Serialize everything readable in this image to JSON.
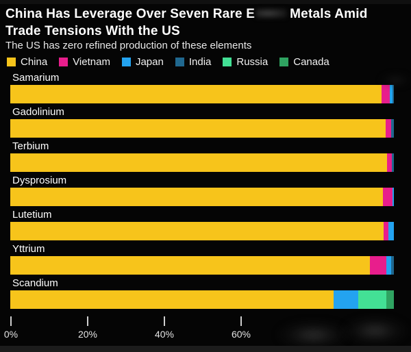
{
  "title": {
    "line1_before_redaction": "China Has Leverage Over Seven Rare E",
    "line1_redaction": "blurred-patch",
    "line1_after_redaction": "Metals Amid",
    "line2": "Trade Tensions With the US"
  },
  "subtitle": "The US has zero refined production of these elements",
  "colors": {
    "background": "#050505",
    "title_text": "#ffffff",
    "subtitle_text": "#e8e8e8",
    "axis_tick": "#cfcfcf",
    "axis_label": "#e3e3e3",
    "China": "#f7c41b",
    "Vietnam": "#e81e8c",
    "Japan": "#23a3f0",
    "India": "#20688f",
    "Russia": "#43e095",
    "Canada": "#2fa361"
  },
  "legend": [
    {
      "label": "China",
      "color": "#f7c41b"
    },
    {
      "label": "Vietnam",
      "color": "#e81e8c"
    },
    {
      "label": "Japan",
      "color": "#23a3f0"
    },
    {
      "label": "India",
      "color": "#20688f"
    },
    {
      "label": "Russia",
      "color": "#43e095"
    },
    {
      "label": "Canada",
      "color": "#2fa361"
    }
  ],
  "chart_data": {
    "type": "bar",
    "orientation": "horizontal",
    "stacked": true,
    "unit": "percent",
    "xlim": [
      0,
      100
    ],
    "x_tick_labels": [
      "0%",
      "20%",
      "40%",
      "60%"
    ],
    "x_tick_values": [
      0,
      20,
      40,
      60
    ],
    "grid": false,
    "legend_position": "top",
    "categories": [
      "Samarium",
      "Gadolinium",
      "Terbium",
      "Dysprosium",
      "Lutetium",
      "Yttrium",
      "Scandium"
    ],
    "rows": [
      {
        "category": "Samarium",
        "segments": [
          {
            "name": "China",
            "value": 96.8
          },
          {
            "name": "Vietnam",
            "value": 2.2
          },
          {
            "name": "Japan",
            "value": 0.6
          },
          {
            "name": "India",
            "value": 0.4
          }
        ]
      },
      {
        "category": "Gadolinium",
        "segments": [
          {
            "name": "China",
            "value": 97.9
          },
          {
            "name": "Vietnam",
            "value": 1.4
          },
          {
            "name": "India",
            "value": 0.7
          }
        ]
      },
      {
        "category": "Terbium",
        "segments": [
          {
            "name": "China",
            "value": 98.2
          },
          {
            "name": "Vietnam",
            "value": 1.3
          },
          {
            "name": "India",
            "value": 0.5
          }
        ]
      },
      {
        "category": "Dysprosium",
        "segments": [
          {
            "name": "China",
            "value": 97.2
          },
          {
            "name": "Vietnam",
            "value": 2.4
          },
          {
            "name": "Japan",
            "value": 0.4
          }
        ]
      },
      {
        "category": "Lutetium",
        "segments": [
          {
            "name": "China",
            "value": 97.4
          },
          {
            "name": "Vietnam",
            "value": 1.2
          },
          {
            "name": "Japan",
            "value": 1.4
          }
        ]
      },
      {
        "category": "Yttrium",
        "segments": [
          {
            "name": "China",
            "value": 93.8
          },
          {
            "name": "Vietnam",
            "value": 4.2
          },
          {
            "name": "Japan",
            "value": 1.2
          },
          {
            "name": "India",
            "value": 0.8
          }
        ]
      },
      {
        "category": "Scandium",
        "segments": [
          {
            "name": "China",
            "value": 84.3
          },
          {
            "name": "Japan",
            "value": 6.5
          },
          {
            "name": "Russia",
            "value": 7.2
          },
          {
            "name": "Canada",
            "value": 2.0
          }
        ]
      }
    ]
  }
}
